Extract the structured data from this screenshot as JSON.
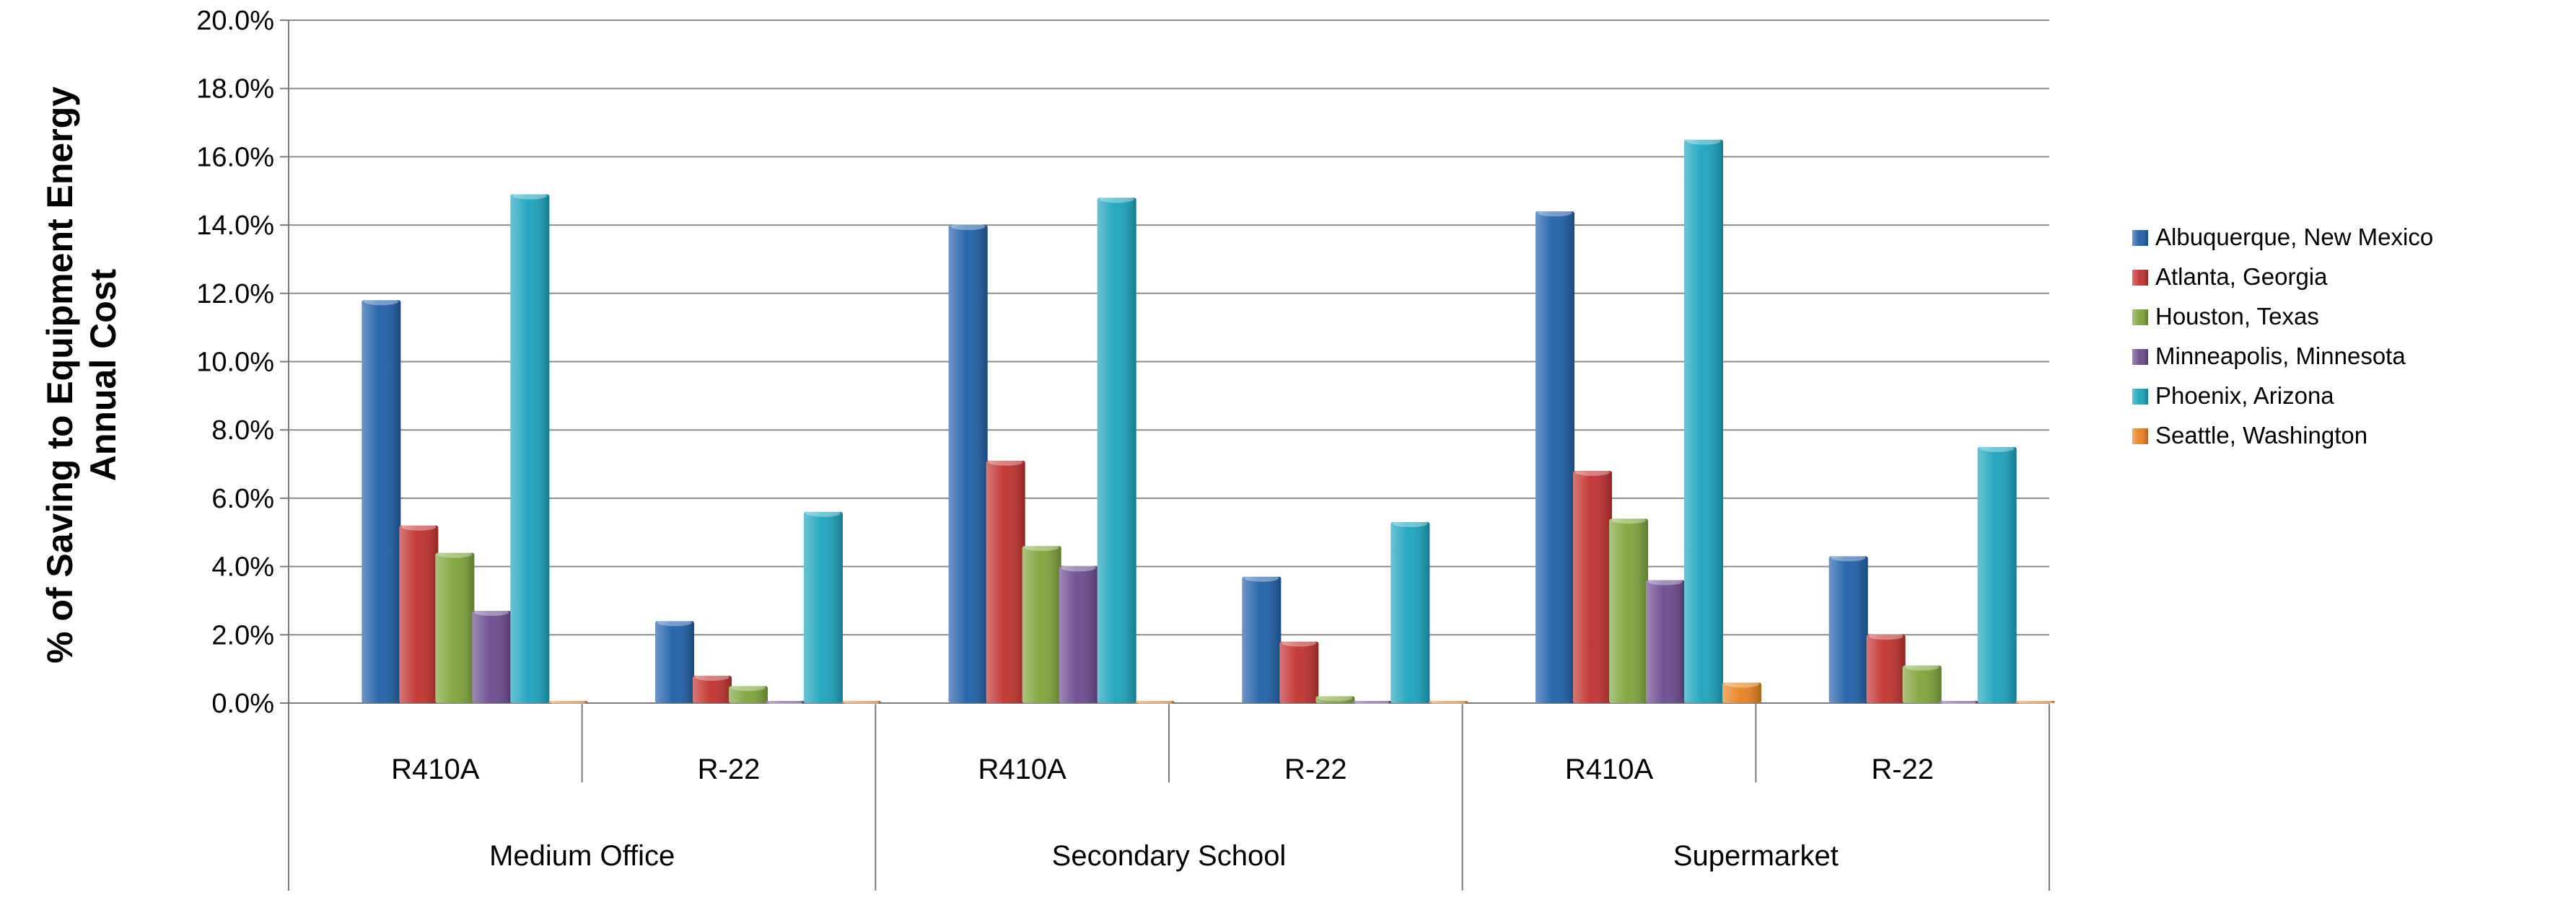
{
  "chart_data": {
    "type": "bar",
    "title": "",
    "ylabel_line1": "% of Saving to Equipment Energy",
    "ylabel_line2": "Annual Cost",
    "ylim": [
      0,
      20
    ],
    "yticks": [
      "0.0%",
      "2.0%",
      "4.0%",
      "6.0%",
      "8.0%",
      "10.0%",
      "12.0%",
      "14.0%",
      "16.0%",
      "18.0%",
      "20.0%"
    ],
    "grid": true,
    "legend_position": "right",
    "groups": [
      {
        "label": "Medium Office",
        "categories": [
          "R410A",
          "R-22"
        ]
      },
      {
        "label": "Secondary School",
        "categories": [
          "R410A",
          "R-22"
        ]
      },
      {
        "label": "Supermarket",
        "categories": [
          "R410A",
          "R-22"
        ]
      }
    ],
    "series": [
      {
        "name": "Albuquerque, New Mexico",
        "color": "#1f5fa8",
        "values": [
          11.8,
          2.4,
          14.0,
          3.7,
          14.4,
          4.3
        ]
      },
      {
        "name": "Atlanta, Georgia",
        "color": "#c0302d",
        "values": [
          5.2,
          0.8,
          7.1,
          1.8,
          6.8,
          2.0
        ]
      },
      {
        "name": "Houston, Texas",
        "color": "#7ea43a",
        "values": [
          4.4,
          0.5,
          4.6,
          0.2,
          5.4,
          1.1
        ]
      },
      {
        "name": "Minneapolis, Minnesota",
        "color": "#6a4a8e",
        "values": [
          2.7,
          0.05,
          4.0,
          0.05,
          3.6,
          0.05
        ]
      },
      {
        "name": "Phoenix, Arizona",
        "color": "#1aa3bd",
        "values": [
          14.9,
          5.6,
          14.8,
          5.3,
          16.5,
          7.5
        ]
      },
      {
        "name": "Seattle, Washington",
        "color": "#e7811f",
        "values": [
          0.05,
          0.05,
          0.05,
          0.05,
          0.6,
          0.05
        ]
      }
    ]
  }
}
